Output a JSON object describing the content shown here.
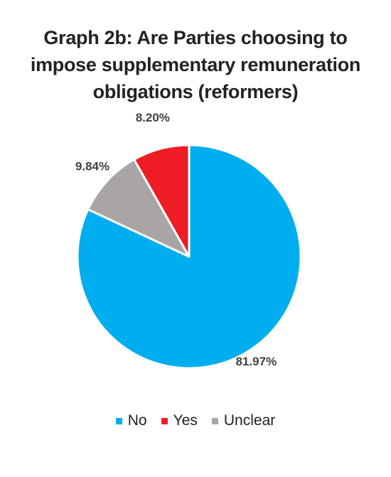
{
  "chart_data": {
    "type": "pie",
    "title": "Graph 2b: Are Parties choosing to impose supplementary remuneration obligations (reformers)",
    "title_lines": [
      "Graph 2b: Are Parties choosing to",
      "impose supplementary remuneration",
      "obligations (reformers)"
    ],
    "slices": [
      {
        "label": "No",
        "value": 81.97,
        "value_label": "81.97%",
        "color": "#00AEEF"
      },
      {
        "label": "Unclear",
        "value": 9.84,
        "value_label": "9.84%",
        "color": "#AAA5A5"
      },
      {
        "label": "Yes",
        "value": 8.2,
        "value_label": "8.20%",
        "color": "#EE1C25"
      }
    ],
    "legend": {
      "placement": "bottom",
      "items": [
        {
          "label": "No",
          "color": "#00AEEF"
        },
        {
          "label": "Yes",
          "color": "#EE1C25"
        },
        {
          "label": "Unclear",
          "color": "#AAA5A5"
        }
      ]
    }
  }
}
